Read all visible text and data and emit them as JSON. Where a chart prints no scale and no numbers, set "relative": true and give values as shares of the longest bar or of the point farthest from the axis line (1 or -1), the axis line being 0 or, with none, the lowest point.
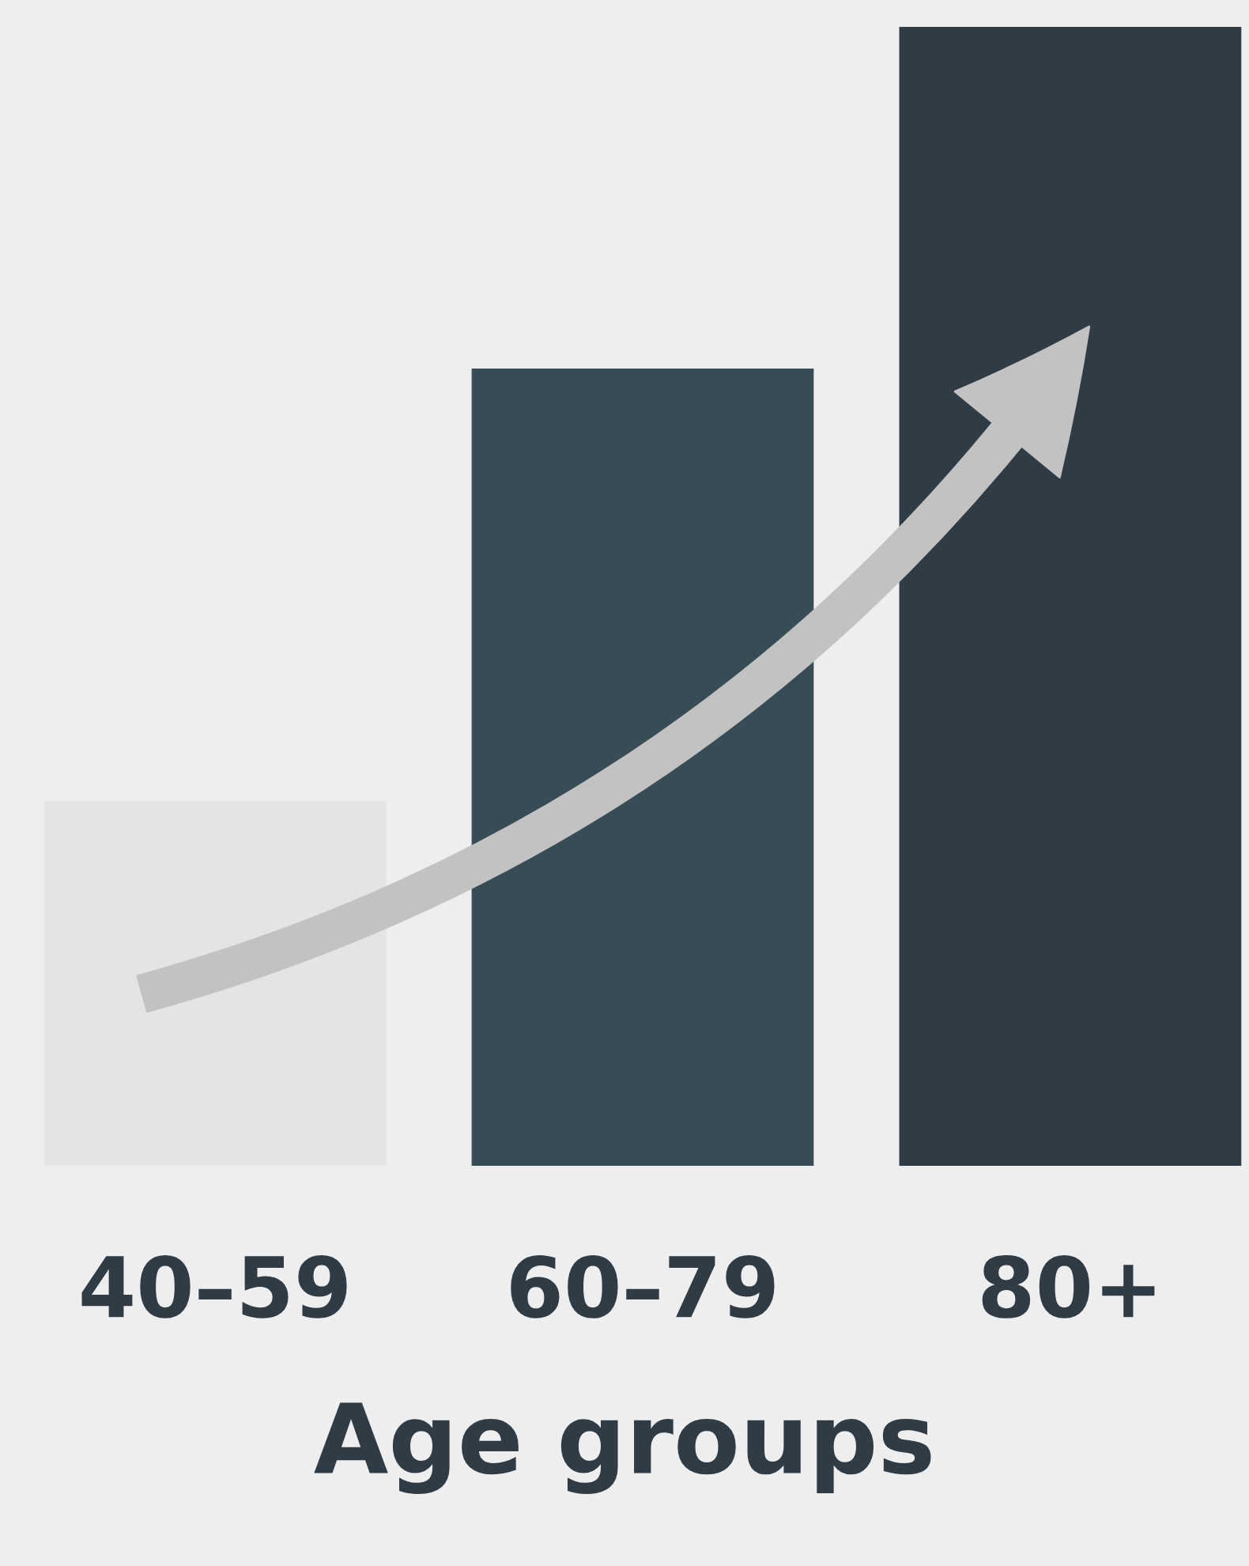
{
  "chart_data": {
    "type": "bar",
    "relative": true,
    "categories": [
      "40–59",
      "60–79",
      "80+"
    ],
    "values": [
      0.32,
      0.7,
      1
    ],
    "colors": [
      "#e3e5e2",
      "#374c54",
      "#2f3c46"
    ],
    "xlabel": "Age groups"
  }
}
